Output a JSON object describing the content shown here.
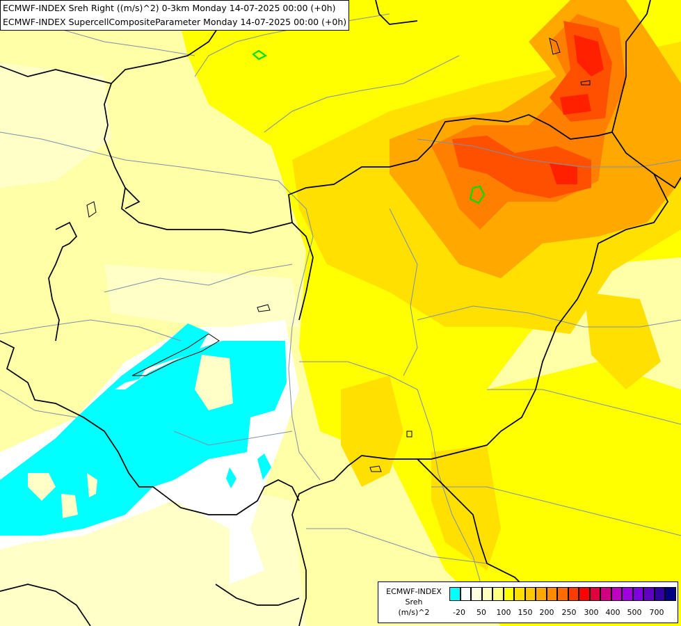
{
  "title": {
    "line1": "ECMWF-INDEX Sreh Right ((m/s)^2) 0-3km Monday 14-07-2025 00:00 (+0h)",
    "line2": "ECMWF-INDEX SupercellCompositeParameter Monday 14-07-2025 00:00 (+0h)"
  },
  "legend": {
    "caption": [
      "ECMWF-INDEX",
      "Sreh",
      "(m/s)^2"
    ],
    "colors": [
      "#00ffff",
      "#ffffff",
      "#ffffe0",
      "#ffffc0",
      "#ffff80",
      "#ffff00",
      "#ffe000",
      "#ffc800",
      "#ffa800",
      "#ff8c00",
      "#ff6c00",
      "#ff3c00",
      "#ff0000",
      "#e00040",
      "#d00080",
      "#c000c0",
      "#a000e0",
      "#8000e0",
      "#6000c0",
      "#3000a0",
      "#000080"
    ],
    "ticks": [
      "-20",
      "50",
      "100",
      "150",
      "200",
      "250",
      "300",
      "400",
      "500",
      "700"
    ]
  },
  "map": {
    "field_colors": {
      "base": "#ffffa8",
      "light": "#ffffc8",
      "yellow": "#ffff00",
      "gold": "#ffe000",
      "amber": "#ffc800",
      "orange": "#ffa800",
      "dark_orange": "#ff8000",
      "red_orange": "#ff5000",
      "red": "#ff2000",
      "cyan": "#00ffff",
      "white": "#ffffff",
      "scp_contour": "#00dd00"
    }
  }
}
